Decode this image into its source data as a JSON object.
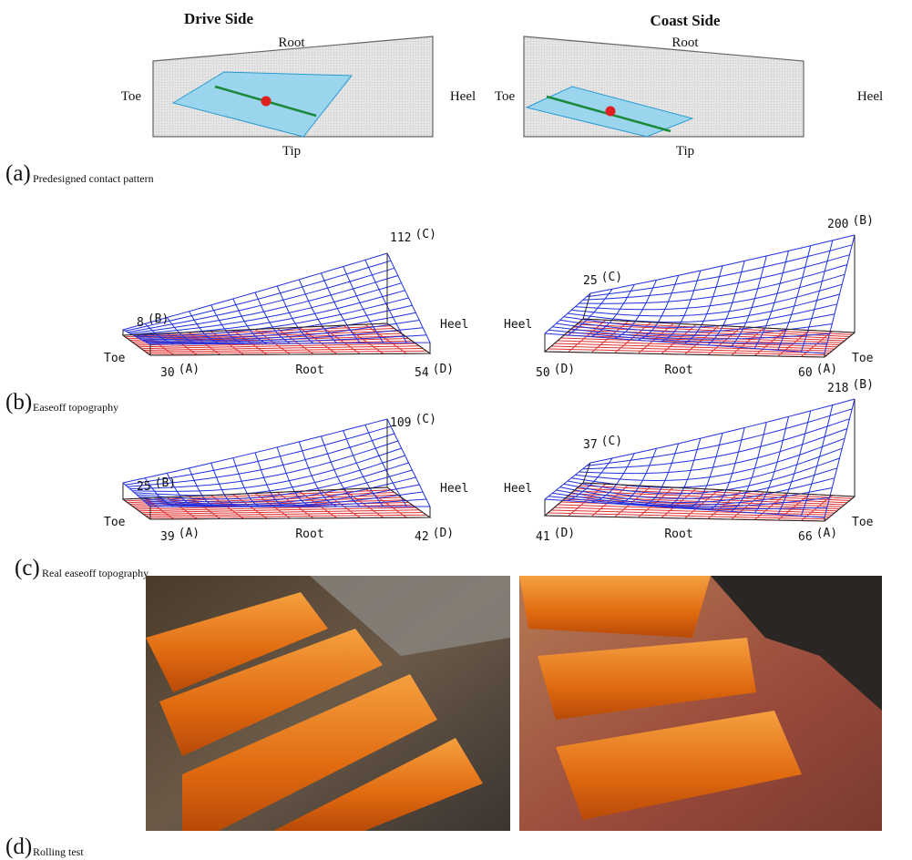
{
  "panel_a": {
    "label": "(a)",
    "caption": "Predesigned contact pattern",
    "drive": {
      "title": "Drive Side",
      "root": "Root",
      "tip": "Tip",
      "toe": "Toe",
      "heel": "Heel"
    },
    "coast": {
      "title": "Coast Side",
      "root": "Root",
      "tip": "Tip",
      "toe": "Toe",
      "heel": "Heel"
    }
  },
  "panel_b": {
    "label": "(b)",
    "caption": "Easeoff topography",
    "drive": {
      "point_c": {
        "value": 112,
        "name": "(C)"
      },
      "point_b": {
        "value": 8,
        "name": "(B)"
      },
      "point_a": {
        "value": 30,
        "name": "(A)"
      },
      "point_d": {
        "value": 54,
        "name": "(D)"
      },
      "heel": "Heel",
      "toe": "Toe",
      "root": "Root"
    },
    "coast": {
      "point_b": {
        "value": 200,
        "name": "(B)"
      },
      "point_c": {
        "value": 25,
        "name": "(C)"
      },
      "point_d": {
        "value": 50,
        "name": "(D)"
      },
      "point_a": {
        "value": 60,
        "name": "(A)"
      },
      "heel": "Heel",
      "toe": "Toe",
      "root": "Root"
    }
  },
  "panel_c": {
    "label": "(c)",
    "caption": "Real easeoff topography",
    "drive": {
      "point_c": {
        "value": 109,
        "name": "(C)"
      },
      "point_b": {
        "value": 25,
        "name": "(B)"
      },
      "point_a": {
        "value": 39,
        "name": "(A)"
      },
      "point_d": {
        "value": 42,
        "name": "(D)"
      },
      "heel": "Heel",
      "toe": "Toe",
      "root": "Root"
    },
    "coast": {
      "point_b": {
        "value": 218,
        "name": "(B)"
      },
      "point_c": {
        "value": 37,
        "name": "(C)"
      },
      "point_d": {
        "value": 41,
        "name": "(D)"
      },
      "point_a": {
        "value": 66,
        "name": "(A)"
      },
      "heel": "Heel",
      "toe": "Toe",
      "root": "Root"
    }
  },
  "panel_d": {
    "label": "(d)",
    "caption": "Rolling test"
  }
}
